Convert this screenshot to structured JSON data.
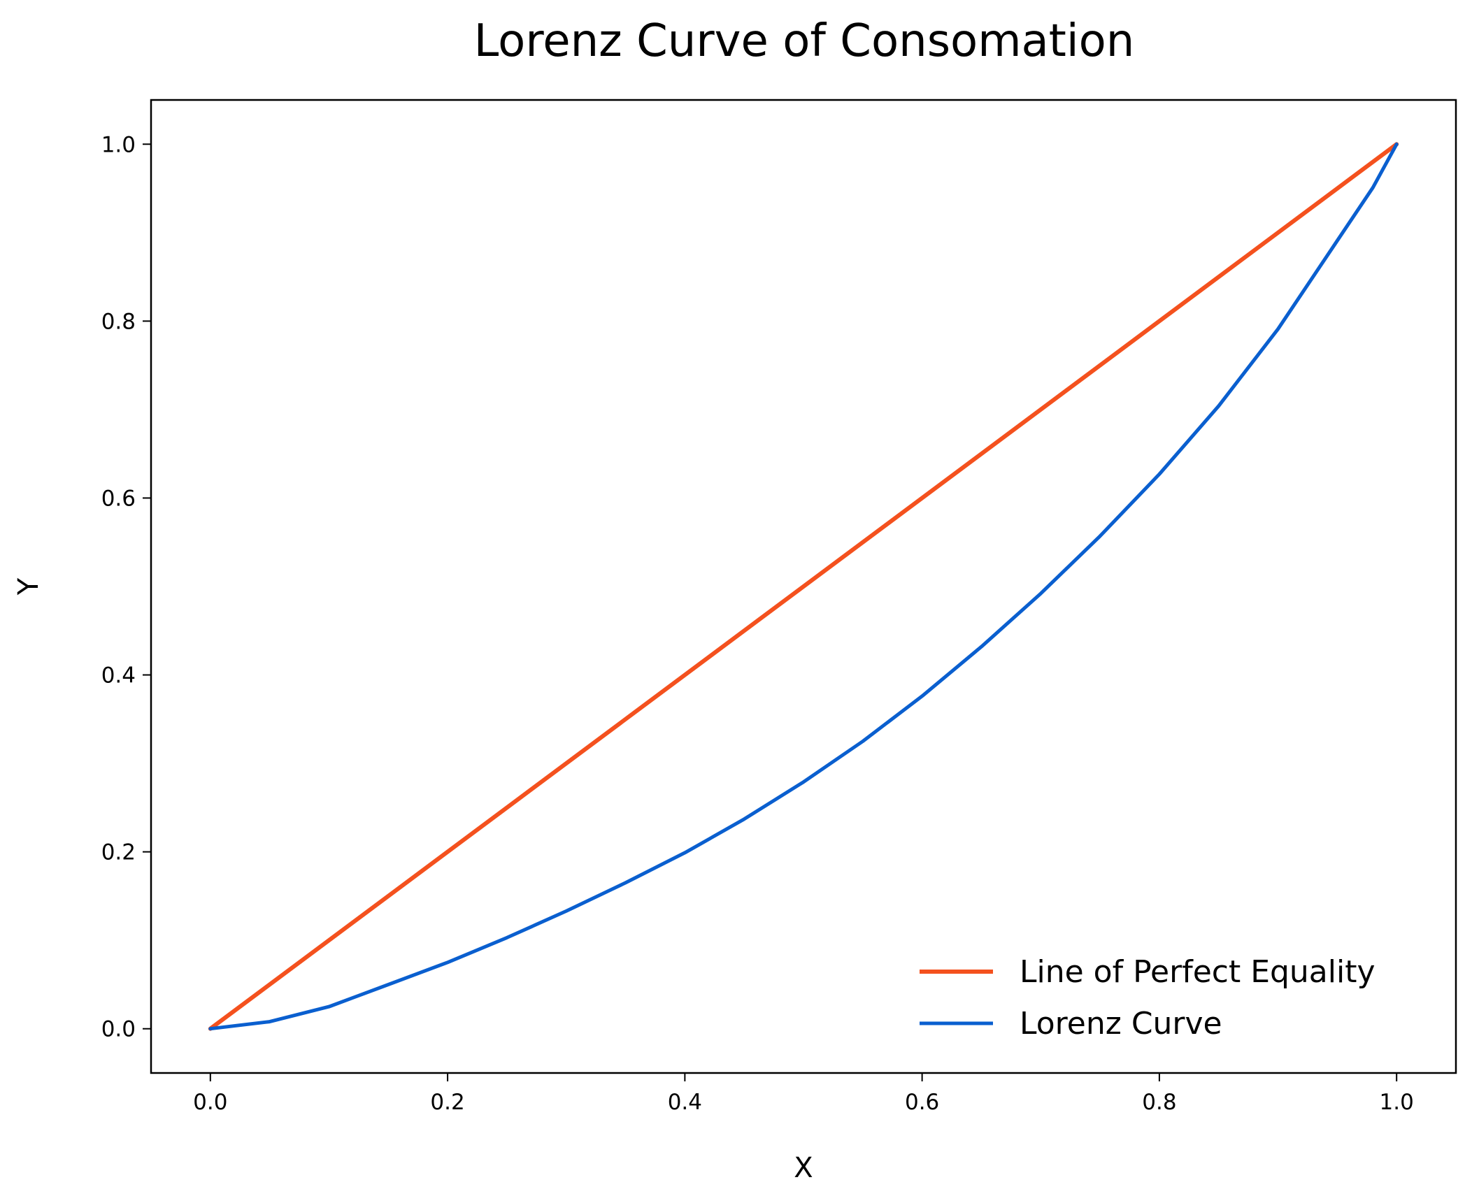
{
  "chart_data": {
    "type": "line",
    "title": "Lorenz Curve of Consomation",
    "xlabel": "X",
    "ylabel": "Y",
    "xlim": [
      -0.05,
      1.05
    ],
    "ylim": [
      -0.05,
      1.05
    ],
    "xticks": [
      0.0,
      0.2,
      0.4,
      0.6,
      0.8,
      1.0
    ],
    "yticks": [
      0.0,
      0.2,
      0.4,
      0.6,
      0.8,
      1.0
    ],
    "xtick_labels": [
      "0.0",
      "0.2",
      "0.4",
      "0.6",
      "0.8",
      "1.0"
    ],
    "ytick_labels": [
      "0.0",
      "0.2",
      "0.4",
      "0.6",
      "0.8",
      "1.0"
    ],
    "grid": false,
    "legend": {
      "position": "bottom-right",
      "frame": false
    },
    "series": [
      {
        "name": "Line of Perfect Equality",
        "color": "#f4511e",
        "x": [
          0.0,
          1.0
        ],
        "y": [
          0.0,
          1.0
        ]
      },
      {
        "name": "Lorenz Curve",
        "color": "#0a5fcf",
        "x": [
          0.0,
          0.05,
          0.1,
          0.15,
          0.2,
          0.25,
          0.3,
          0.35,
          0.4,
          0.45,
          0.5,
          0.55,
          0.6,
          0.65,
          0.7,
          0.75,
          0.8,
          0.85,
          0.9,
          0.95,
          0.98,
          1.0
        ],
        "y": [
          0.0,
          0.008,
          0.025,
          0.05,
          0.075,
          0.103,
          0.133,
          0.165,
          0.199,
          0.237,
          0.279,
          0.325,
          0.376,
          0.432,
          0.492,
          0.557,
          0.627,
          0.704,
          0.791,
          0.891,
          0.951,
          1.0
        ]
      }
    ]
  }
}
